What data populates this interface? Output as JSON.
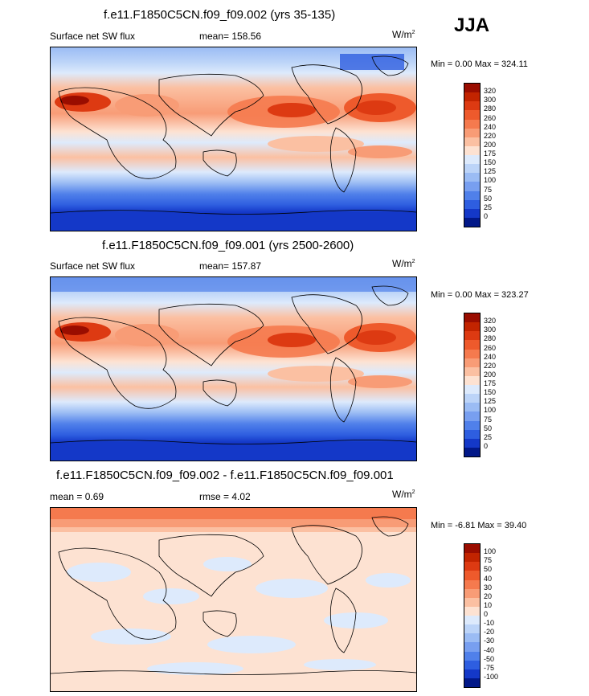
{
  "season": "JJA",
  "panels": [
    {
      "id": "p1",
      "title": "f.e11.F1850C5CN.f09_f09.002 (yrs 35-135)",
      "left_label": "Surface net SW flux",
      "stat": "mean= 158.56",
      "unit": "W/m",
      "unit_exp": "2",
      "minmax": "Min =   0.00 Max = 324.11",
      "levels": [
        "320",
        "300",
        "280",
        "260",
        "240",
        "220",
        "200",
        "175",
        "150",
        "125",
        "100",
        "75",
        "50",
        "25",
        "0"
      ],
      "colors": [
        "#9a0d00",
        "#c22400",
        "#dd3a12",
        "#ee5a2c",
        "#f57a4e",
        "#f89c76",
        "#fbc0a2",
        "#fde2d2",
        "#ddeafc",
        "#bcd4f8",
        "#9bbcf4",
        "#789ff0",
        "#5080ea",
        "#2e5ee0",
        "#1438c8",
        "#021888"
      ]
    },
    {
      "id": "p2",
      "title": "f.e11.F1850C5CN.f09_f09.001 (yrs 2500-2600)",
      "left_label": "Surface net SW flux",
      "stat": "mean= 157.87",
      "unit": "W/m",
      "unit_exp": "2",
      "minmax": "Min =   0.00 Max = 323.27",
      "levels": [
        "320",
        "300",
        "280",
        "260",
        "240",
        "220",
        "200",
        "175",
        "150",
        "125",
        "100",
        "75",
        "50",
        "25",
        "0"
      ],
      "colors": [
        "#9a0d00",
        "#c22400",
        "#dd3a12",
        "#ee5a2c",
        "#f57a4e",
        "#f89c76",
        "#fbc0a2",
        "#fde2d2",
        "#ddeafc",
        "#bcd4f8",
        "#9bbcf4",
        "#789ff0",
        "#5080ea",
        "#2e5ee0",
        "#1438c8",
        "#021888"
      ]
    },
    {
      "id": "p3",
      "title": "f.e11.F1850C5CN.f09_f09.002 - f.e11.F1850C5CN.f09_f09.001",
      "left_label": "mean =   0.69",
      "stat": "rmse =   4.02",
      "unit": "W/m",
      "unit_exp": "2",
      "minmax": "Min =  -6.81 Max =  39.40",
      "levels": [
        "100",
        "75",
        "50",
        "40",
        "30",
        "20",
        "10",
        "0",
        "-10",
        "-20",
        "-30",
        "-40",
        "-50",
        "-75",
        "-100"
      ],
      "colors": [
        "#9a0d00",
        "#c22400",
        "#dd3a12",
        "#ee5a2c",
        "#f57a4e",
        "#f89c76",
        "#fbc0a2",
        "#fde2d2",
        "#ddeafc",
        "#bcd4f8",
        "#9bbcf4",
        "#789ff0",
        "#5080ea",
        "#2e5ee0",
        "#1438c8",
        "#021888"
      ]
    }
  ]
}
